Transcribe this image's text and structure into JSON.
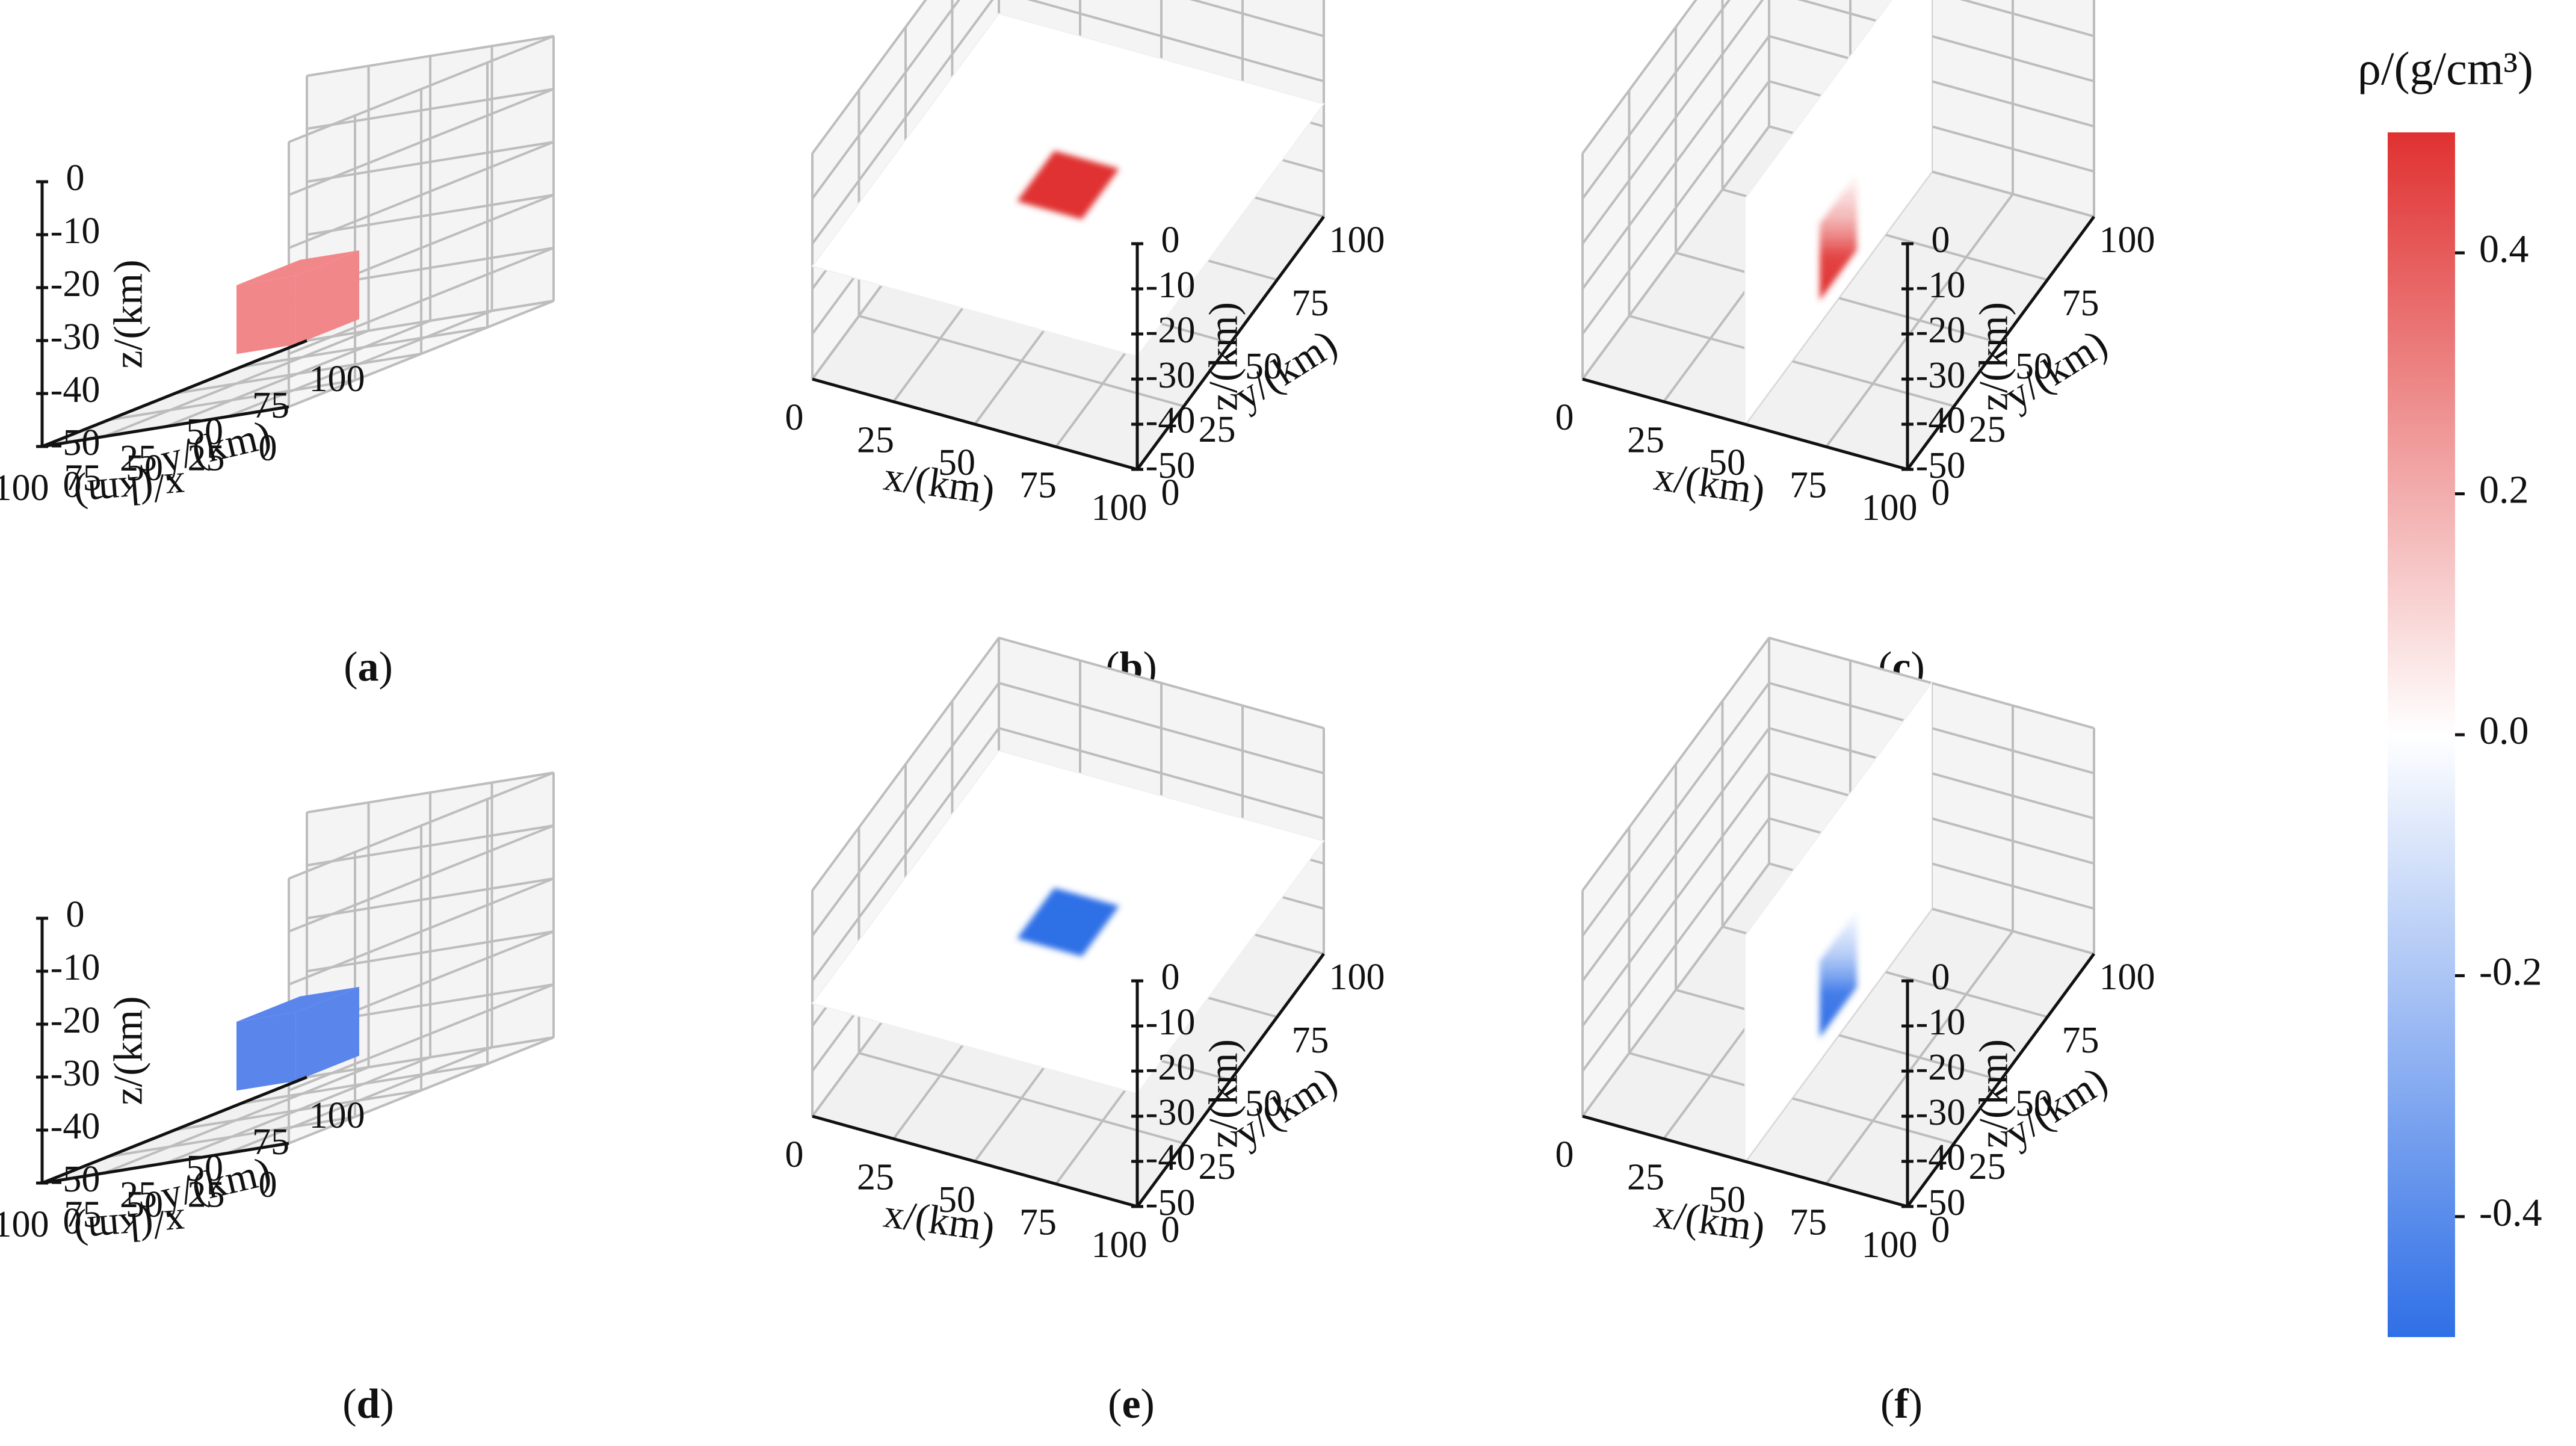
{
  "figure": {
    "panels": [
      {
        "id": "a",
        "label_prefix": "(",
        "label_letter": "a",
        "label_suffix": ")",
        "sign": "positive",
        "view": "block"
      },
      {
        "id": "b",
        "label_prefix": "(",
        "label_letter": "b",
        "label_suffix": ")",
        "sign": "positive",
        "view": "horizontal-slice"
      },
      {
        "id": "c",
        "label_prefix": "(",
        "label_letter": "c",
        "label_suffix": ")",
        "sign": "positive",
        "view": "vertical-slice"
      },
      {
        "id": "d",
        "label_prefix": "(",
        "label_letter": "d",
        "label_suffix": ")",
        "sign": "negative",
        "view": "block"
      },
      {
        "id": "e",
        "label_prefix": "(",
        "label_letter": "e",
        "label_suffix": ")",
        "sign": "negative",
        "view": "horizontal-slice"
      },
      {
        "id": "f",
        "label_prefix": "(",
        "label_letter": "f",
        "label_suffix": ")",
        "sign": "negative",
        "view": "vertical-slice"
      }
    ]
  },
  "chart_data": {
    "type": "heatmap",
    "subtype": "3d-density-model",
    "axes": {
      "x": {
        "label": "x/(km)",
        "ticks": [
          "0",
          "25",
          "50",
          "75",
          "100"
        ],
        "range": [
          0,
          100
        ]
      },
      "y": {
        "label": "y/(km)",
        "ticks": [
          "0",
          "25",
          "50",
          "75",
          "100"
        ],
        "range": [
          0,
          100
        ]
      },
      "z": {
        "label": "z/(km)",
        "ticks": [
          "0",
          "-10",
          "-20",
          "-30",
          "-40",
          "-50"
        ],
        "range": [
          -50,
          0
        ]
      }
    },
    "colorbar": {
      "title": "ρ/(g/cm³)",
      "range": [
        -0.5,
        0.5
      ],
      "ticks": [
        0.4,
        0.2,
        0.0,
        -0.2,
        -0.4
      ],
      "tick_labels": [
        "0.4",
        "0.2",
        "0.0",
        "-0.2",
        "-0.4"
      ],
      "colors": {
        "max": "#e03131",
        "mid": "#ffffff",
        "min": "#2f6fe6"
      }
    },
    "anomalies": {
      "positive": {
        "density": 0.2,
        "block_color": "#f2878a",
        "slice_color": "#e03131"
      },
      "negative": {
        "density": -0.4,
        "block_color": "#5a86ec",
        "slice_color": "#2f6fe6"
      }
    }
  }
}
